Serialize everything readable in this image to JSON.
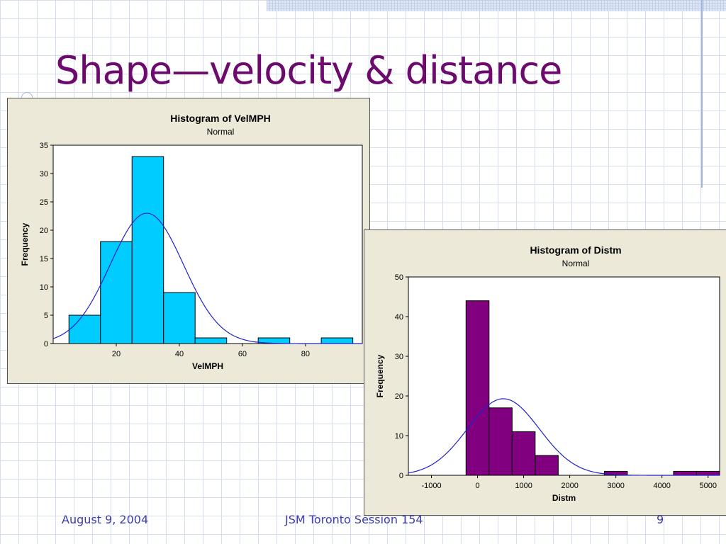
{
  "slide": {
    "title": "Shape—velocity & distance",
    "footer": {
      "date": "August 9, 2004",
      "session": "JSM Toronto Session 154",
      "page": "9"
    }
  },
  "colors": {
    "title": "#6d0a6d",
    "footer": "#3b3bb0",
    "curve": "#2020cc",
    "panel_bg": "#ece9d8"
  },
  "chart_data": [
    {
      "type": "bar",
      "subtype": "histogram",
      "title": "Histogram of VelMPH",
      "subtitle": "Normal",
      "xlabel": "VelMPH",
      "ylabel": "Frequency",
      "bar_color": "#00ccff",
      "xlim": [
        0,
        98
      ],
      "ylim": [
        0,
        35
      ],
      "xticks": [
        20,
        40,
        60,
        80
      ],
      "yticks": [
        0,
        5,
        10,
        15,
        20,
        25,
        30,
        35
      ],
      "bins": [
        {
          "x0": 5,
          "x1": 15,
          "count": 5
        },
        {
          "x0": 15,
          "x1": 25,
          "count": 18
        },
        {
          "x0": 25,
          "x1": 35,
          "count": 33
        },
        {
          "x0": 35,
          "x1": 45,
          "count": 9
        },
        {
          "x0": 45,
          "x1": 55,
          "count": 1
        },
        {
          "x0": 55,
          "x1": 65,
          "count": 0
        },
        {
          "x0": 65,
          "x1": 75,
          "count": 1
        },
        {
          "x0": 75,
          "x1": 85,
          "count": 0
        },
        {
          "x0": 85,
          "x1": 95,
          "count": 1
        }
      ],
      "normal_fit": {
        "mean": 29.7,
        "sd": 11.6,
        "peak": 23
      }
    },
    {
      "type": "bar",
      "subtype": "histogram",
      "title": "Histogram of Distm",
      "subtitle": "Normal",
      "xlabel": "Distm",
      "ylabel": "Frequency",
      "bar_color": "#800080",
      "xlim": [
        -1500,
        5250
      ],
      "ylim": [
        0,
        50
      ],
      "xticks": [
        -1000,
        0,
        1000,
        2000,
        3000,
        4000,
        5000
      ],
      "yticks": [
        0,
        10,
        20,
        30,
        40,
        50
      ],
      "bins": [
        {
          "x0": -250,
          "x1": 250,
          "count": 44
        },
        {
          "x0": 250,
          "x1": 750,
          "count": 17
        },
        {
          "x0": 750,
          "x1": 1250,
          "count": 11
        },
        {
          "x0": 1250,
          "x1": 1750,
          "count": 5
        },
        {
          "x0": 1750,
          "x1": 2250,
          "count": 0
        },
        {
          "x0": 2250,
          "x1": 2750,
          "count": 0
        },
        {
          "x0": 2750,
          "x1": 3250,
          "count": 1
        },
        {
          "x0": 3250,
          "x1": 3750,
          "count": 0
        },
        {
          "x0": 3750,
          "x1": 4250,
          "count": 0
        },
        {
          "x0": 4250,
          "x1": 4750,
          "count": 1
        },
        {
          "x0": 4750,
          "x1": 5250,
          "count": 1
        }
      ],
      "normal_fit": {
        "mean": 560,
        "sd": 780,
        "peak": 19.3
      }
    }
  ]
}
